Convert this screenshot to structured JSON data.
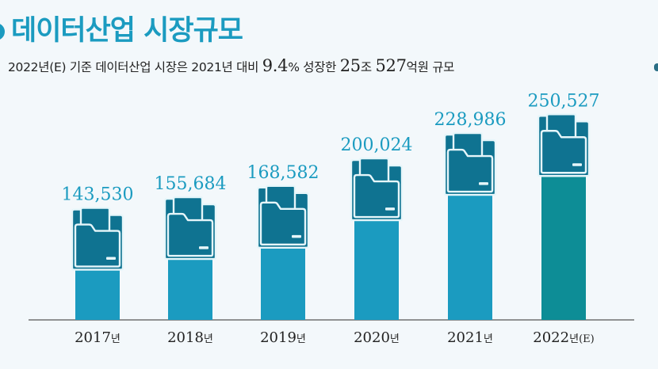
{
  "title": "데이터산업 시장규모",
  "subtitle": {
    "part1": "2022년(E) 기준 데이터산업 시장은 2021년 대비 ",
    "growth": "9.4",
    "part2": "% 성장한 ",
    "trillion": "25",
    "part3": "조 ",
    "hundred_million": "527",
    "part4": "억원 규모"
  },
  "colors": {
    "accent": "#1b9bc0",
    "bar_highlight": "#0d8d96",
    "icon_back": "#0f7391",
    "icon_front": "#e6f6fa",
    "background": "#f3f8fb"
  },
  "chart_data": {
    "type": "bar",
    "title": "",
    "xlabel": "",
    "ylabel": "",
    "categories": [
      {
        "year": "2017",
        "unit": "년",
        "note": ""
      },
      {
        "year": "2018",
        "unit": "년",
        "note": ""
      },
      {
        "year": "2019",
        "unit": "년",
        "note": ""
      },
      {
        "year": "2020",
        "unit": "년",
        "note": ""
      },
      {
        "year": "2021",
        "unit": "년",
        "note": ""
      },
      {
        "year": "2022",
        "unit": "년",
        "note": "(E)"
      }
    ],
    "values": [
      143530,
      155684,
      168582,
      200024,
      228986,
      250527
    ],
    "value_labels": [
      "143,530",
      "155,684",
      "168,582",
      "200,024",
      "228,986",
      "250,527"
    ],
    "highlight_index": 5,
    "bar_icon": "folder-icon",
    "grid": false,
    "legend": "none"
  }
}
